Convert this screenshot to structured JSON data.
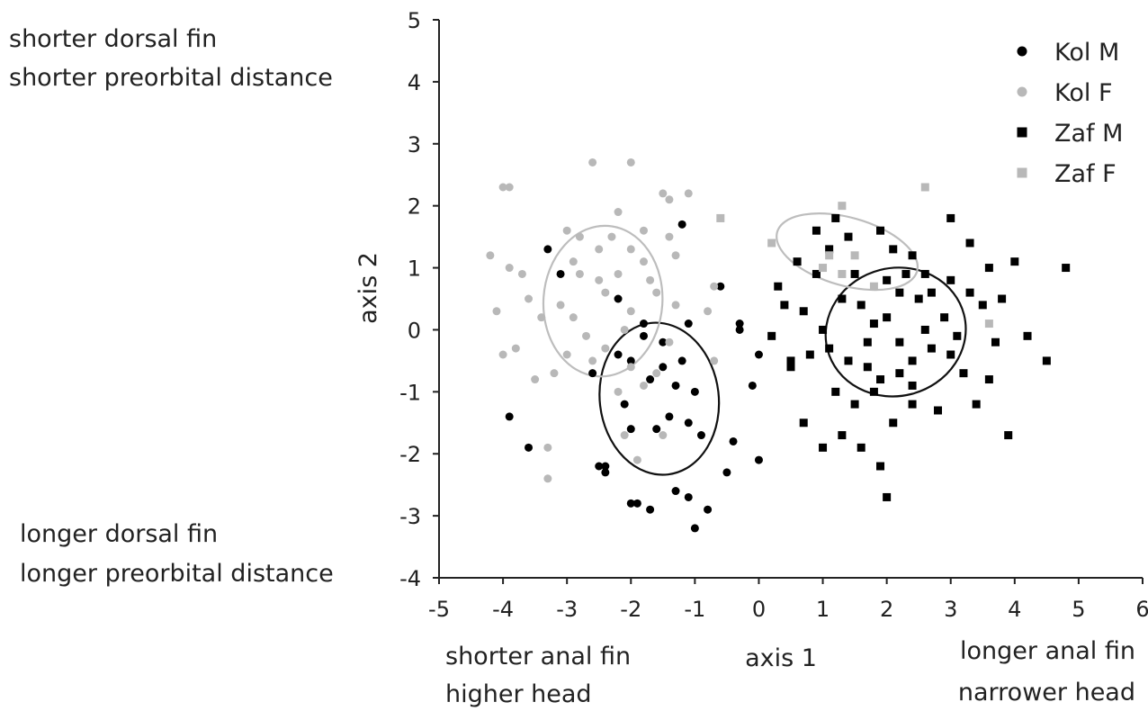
{
  "chart_data": {
    "type": "scatter",
    "title": "",
    "xlabel": "axis 1",
    "ylabel": "axis 2",
    "xlim": [
      -5,
      6
    ],
    "ylim": [
      -4,
      5
    ],
    "xticks": [
      -5,
      -4,
      -3,
      -2,
      -1,
      0,
      1,
      2,
      3,
      4,
      5,
      6
    ],
    "yticks": [
      -4,
      -3,
      -2,
      -1,
      0,
      1,
      2,
      3,
      4,
      5
    ],
    "grid": false,
    "legend_position": "top-right",
    "annotations": {
      "left_top_1": "shorter dorsal fin",
      "left_top_2": "shorter preorbital distance",
      "left_bottom_1": "longer dorsal fin",
      "left_bottom_2": "longer preorbital distance",
      "bottom_left_1": "shorter anal fin",
      "bottom_left_2": "higher head",
      "bottom_right_1": "longer anal fin",
      "bottom_right_2": "narrower head"
    },
    "series": [
      {
        "name": "Kol M",
        "marker": "circle",
        "color": "#000000",
        "points": [
          [
            -3.3,
            1.3
          ],
          [
            -3.1,
            0.9
          ],
          [
            -2.2,
            0.5
          ],
          [
            -1.8,
            0.1
          ],
          [
            -1.5,
            -0.2
          ],
          [
            -1.7,
            -0.8
          ],
          [
            -2.1,
            -1.2
          ],
          [
            -1.3,
            -0.9
          ],
          [
            -1.0,
            -1.0
          ],
          [
            -1.4,
            -1.4
          ],
          [
            -0.9,
            -1.7
          ],
          [
            -1.6,
            -1.6
          ],
          [
            -2.0,
            -1.6
          ],
          [
            -2.4,
            -2.2
          ],
          [
            -2.4,
            -2.3
          ],
          [
            -1.9,
            -2.8
          ],
          [
            -1.7,
            -2.9
          ],
          [
            -1.3,
            -2.6
          ],
          [
            -1.1,
            -2.7
          ],
          [
            -1.0,
            -3.2
          ],
          [
            -3.6,
            -1.9
          ],
          [
            -3.9,
            -1.4
          ],
          [
            -1.2,
            1.7
          ],
          [
            -0.6,
            0.7
          ],
          [
            -0.3,
            0.1
          ],
          [
            -0.4,
            -1.8
          ],
          [
            -0.5,
            -2.3
          ],
          [
            0.0,
            -2.1
          ],
          [
            -0.1,
            -0.9
          ],
          [
            -2.2,
            -0.4
          ],
          [
            -1.1,
            0.1
          ],
          [
            -0.3,
            0.0
          ],
          [
            0.0,
            -0.4
          ],
          [
            -1.5,
            -0.6
          ],
          [
            -2.6,
            -0.7
          ],
          [
            -1.2,
            -0.5
          ],
          [
            -1.8,
            -0.1
          ],
          [
            -2.0,
            -0.5
          ],
          [
            -0.8,
            -2.9
          ],
          [
            -2.5,
            -2.2
          ],
          [
            -1.1,
            -1.5
          ],
          [
            -2.0,
            -2.8
          ]
        ]
      },
      {
        "name": "Kol F",
        "marker": "circle",
        "color": "#b8b8b8",
        "points": [
          [
            -4.0,
            2.3
          ],
          [
            -3.9,
            2.3
          ],
          [
            -4.2,
            1.2
          ],
          [
            -4.1,
            0.3
          ],
          [
            -3.9,
            1.0
          ],
          [
            -3.4,
            0.2
          ],
          [
            -3.0,
            1.6
          ],
          [
            -2.6,
            2.7
          ],
          [
            -2.0,
            2.7
          ],
          [
            -1.5,
            2.2
          ],
          [
            -1.4,
            2.1
          ],
          [
            -1.1,
            2.2
          ],
          [
            -2.3,
            1.5
          ],
          [
            -2.0,
            1.3
          ],
          [
            -1.8,
            1.1
          ],
          [
            -2.8,
            0.9
          ],
          [
            -2.5,
            0.8
          ],
          [
            -2.4,
            0.6
          ],
          [
            -1.6,
            0.6
          ],
          [
            -1.3,
            0.4
          ],
          [
            -2.0,
            0.3
          ],
          [
            -2.7,
            -0.1
          ],
          [
            -2.6,
            -0.5
          ],
          [
            -2.4,
            -0.3
          ],
          [
            -2.0,
            -0.6
          ],
          [
            -1.6,
            -0.7
          ],
          [
            -3.2,
            -0.7
          ],
          [
            -3.5,
            -0.8
          ],
          [
            -3.8,
            -0.3
          ],
          [
            -4.0,
            -0.4
          ],
          [
            -3.3,
            -1.9
          ],
          [
            -3.3,
            -2.4
          ],
          [
            -2.1,
            -1.7
          ],
          [
            -1.9,
            -2.1
          ],
          [
            -1.5,
            -1.7
          ],
          [
            -2.2,
            -1.0
          ],
          [
            -1.8,
            -0.9
          ],
          [
            -0.7,
            0.7
          ],
          [
            -0.8,
            0.3
          ],
          [
            -0.7,
            -0.5
          ],
          [
            -3.1,
            0.4
          ],
          [
            -2.9,
            0.2
          ],
          [
            -3.0,
            -0.4
          ],
          [
            -2.2,
            0.9
          ],
          [
            -1.8,
            1.6
          ],
          [
            -2.8,
            1.5
          ],
          [
            -1.4,
            1.5
          ],
          [
            -2.2,
            1.9
          ],
          [
            -1.7,
            0.8
          ],
          [
            -1.3,
            1.2
          ],
          [
            -2.5,
            1.3
          ],
          [
            -3.7,
            0.9
          ],
          [
            -2.9,
            1.1
          ],
          [
            -2.1,
            0.0
          ],
          [
            -1.4,
            -0.2
          ],
          [
            -3.6,
            0.5
          ]
        ]
      },
      {
        "name": "Zaf M",
        "marker": "square",
        "color": "#000000",
        "points": [
          [
            0.3,
            0.7
          ],
          [
            0.6,
            1.1
          ],
          [
            0.9,
            1.6
          ],
          [
            1.2,
            1.8
          ],
          [
            1.4,
            1.5
          ],
          [
            1.9,
            1.6
          ],
          [
            2.1,
            1.3
          ],
          [
            2.4,
            1.2
          ],
          [
            3.0,
            1.8
          ],
          [
            3.3,
            1.4
          ],
          [
            4.0,
            1.1
          ],
          [
            4.8,
            1.0
          ],
          [
            0.7,
            0.3
          ],
          [
            1.0,
            0.0
          ],
          [
            1.3,
            0.5
          ],
          [
            1.6,
            0.4
          ],
          [
            1.8,
            0.1
          ],
          [
            2.0,
            0.2
          ],
          [
            2.2,
            0.6
          ],
          [
            2.5,
            0.5
          ],
          [
            2.7,
            0.6
          ],
          [
            3.0,
            0.8
          ],
          [
            3.3,
            0.6
          ],
          [
            3.5,
            0.4
          ],
          [
            3.8,
            0.5
          ],
          [
            0.5,
            -0.5
          ],
          [
            0.8,
            -0.4
          ],
          [
            1.1,
            -0.3
          ],
          [
            1.4,
            -0.5
          ],
          [
            1.7,
            -0.6
          ],
          [
            1.9,
            -0.8
          ],
          [
            2.2,
            -0.7
          ],
          [
            2.4,
            -0.5
          ],
          [
            2.7,
            -0.3
          ],
          [
            3.0,
            -0.4
          ],
          [
            3.2,
            -0.7
          ],
          [
            3.6,
            -0.8
          ],
          [
            4.2,
            -0.1
          ],
          [
            4.5,
            -0.5
          ],
          [
            0.7,
            -1.5
          ],
          [
            1.0,
            -1.9
          ],
          [
            1.3,
            -1.7
          ],
          [
            1.6,
            -1.9
          ],
          [
            1.9,
            -2.2
          ],
          [
            2.0,
            -2.7
          ],
          [
            2.1,
            -1.5
          ],
          [
            2.4,
            -1.2
          ],
          [
            2.8,
            -1.3
          ],
          [
            3.4,
            -1.2
          ],
          [
            3.9,
            -1.7
          ],
          [
            0.9,
            0.9
          ],
          [
            1.5,
            0.9
          ],
          [
            2.3,
            0.9
          ],
          [
            2.6,
            0.0
          ],
          [
            1.7,
            -0.2
          ],
          [
            1.2,
            -1.0
          ],
          [
            1.8,
            -1.0
          ],
          [
            2.4,
            -0.9
          ],
          [
            3.1,
            -0.1
          ],
          [
            0.5,
            -0.6
          ],
          [
            1.5,
            -1.2
          ],
          [
            2.0,
            0.8
          ],
          [
            0.2,
            -0.1
          ],
          [
            2.9,
            0.2
          ],
          [
            3.7,
            -0.2
          ],
          [
            1.1,
            1.3
          ],
          [
            2.6,
            0.9
          ],
          [
            3.6,
            1.0
          ],
          [
            0.4,
            0.4
          ],
          [
            2.2,
            -0.2
          ]
        ]
      },
      {
        "name": "Zaf F",
        "marker": "square",
        "color": "#b8b8b8",
        "points": [
          [
            1.3,
            2.0
          ],
          [
            2.6,
            2.3
          ],
          [
            -0.6,
            1.8
          ],
          [
            0.2,
            1.4
          ],
          [
            1.1,
            1.2
          ],
          [
            1.0,
            1.0
          ],
          [
            1.3,
            0.9
          ],
          [
            1.8,
            0.7
          ],
          [
            3.6,
            0.1
          ],
          [
            1.5,
            1.2
          ]
        ]
      }
    ]
  }
}
